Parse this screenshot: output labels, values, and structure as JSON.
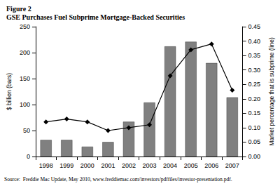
{
  "chart_data": {
    "type": "bar",
    "title": "Figure 2",
    "subtitle": "GSE Purchases Fuel Subprime Mortgage-Backed Securities",
    "source": "Source:  Freddie Mac Update, May 2010, www.freddiemac.com/investors/pdffiles/investor-presentation.pdf.",
    "categories": [
      "1998",
      "1999",
      "2000",
      "2001",
      "2002",
      "2003",
      "2004",
      "2005",
      "2006",
      "2007"
    ],
    "series": [
      {
        "type": "bar",
        "color": "#808080",
        "values": [
          32,
          32,
          19,
          28,
          67,
          104,
          212,
          221,
          180,
          114
        ]
      },
      {
        "type": "line",
        "axis": "y2",
        "color": "#000000",
        "marker": "diamond",
        "values": [
          0.12,
          0.13,
          0.12,
          0.09,
          0.1,
          0.11,
          0.28,
          0.37,
          0.39,
          0.23
        ]
      }
    ],
    "ylabel": "$ billion (bars)",
    "y2label": "Market percentage that is subprime (line)",
    "ylim": [
      0,
      250
    ],
    "yticks": [
      0,
      50,
      100,
      150,
      200,
      250
    ],
    "y2lim": [
      0,
      0.45
    ],
    "y2ticks": [
      {
        "value": 0,
        "label": "0.00"
      },
      {
        "value": 0.05,
        "label": "0.05"
      },
      {
        "value": 0.1,
        "label": "0.10"
      },
      {
        "value": 0.15,
        "label": "0.15"
      },
      {
        "value": 0.2,
        "label": "0.20"
      },
      {
        "value": 0.25,
        "label": "0.25"
      },
      {
        "value": 0.3,
        "label": "0.30"
      },
      {
        "value": 0.35,
        "label": "0.35"
      },
      {
        "value": 0.4,
        "label": "0.40"
      },
      {
        "value": 0.45,
        "label": "0.45"
      }
    ],
    "grid": false
  }
}
